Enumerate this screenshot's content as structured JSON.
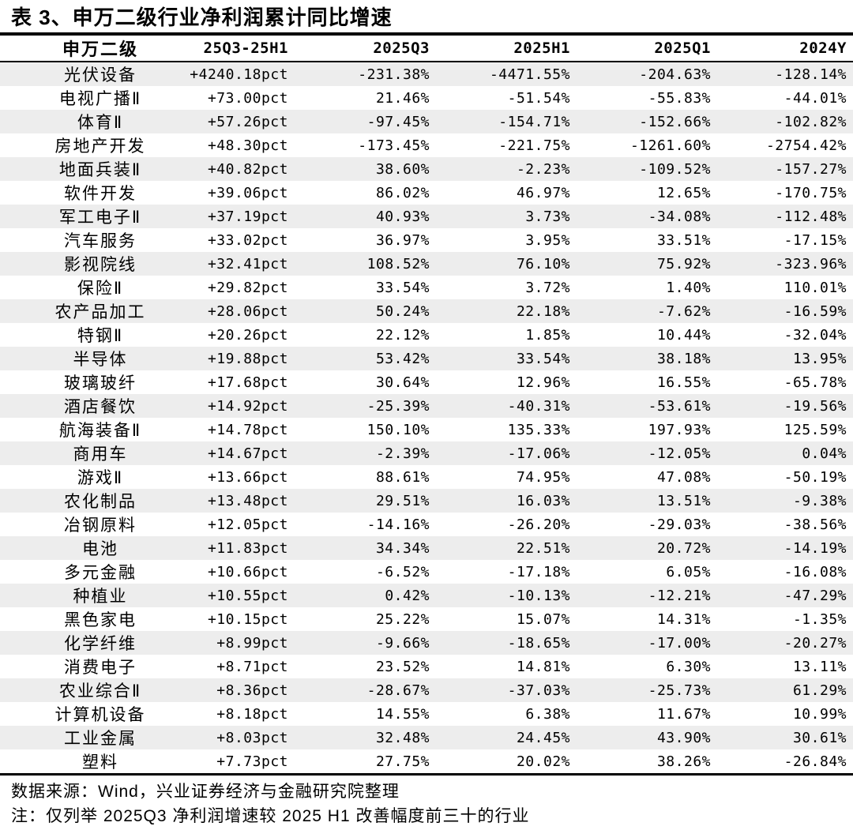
{
  "title": "表 3、申万二级行业净利润累计同比增速",
  "table": {
    "columns": [
      "申万二级",
      "25Q3-25H1",
      "2025Q3",
      "2025H1",
      "2025Q1",
      "2024Y"
    ],
    "rows": [
      [
        "光伏设备",
        "+4240.18pct",
        "-231.38%",
        "-4471.55%",
        "-204.63%",
        "-128.14%"
      ],
      [
        "电视广播Ⅱ",
        "+73.00pct",
        "21.46%",
        "-51.54%",
        "-55.83%",
        "-44.01%"
      ],
      [
        "体育Ⅱ",
        "+57.26pct",
        "-97.45%",
        "-154.71%",
        "-152.66%",
        "-102.82%"
      ],
      [
        "房地产开发",
        "+48.30pct",
        "-173.45%",
        "-221.75%",
        "-1261.60%",
        "-2754.42%"
      ],
      [
        "地面兵装Ⅱ",
        "+40.82pct",
        "38.60%",
        "-2.23%",
        "-109.52%",
        "-157.27%"
      ],
      [
        "软件开发",
        "+39.06pct",
        "86.02%",
        "46.97%",
        "12.65%",
        "-170.75%"
      ],
      [
        "军工电子Ⅱ",
        "+37.19pct",
        "40.93%",
        "3.73%",
        "-34.08%",
        "-112.48%"
      ],
      [
        "汽车服务",
        "+33.02pct",
        "36.97%",
        "3.95%",
        "33.51%",
        "-17.15%"
      ],
      [
        "影视院线",
        "+32.41pct",
        "108.52%",
        "76.10%",
        "75.92%",
        "-323.96%"
      ],
      [
        "保险Ⅱ",
        "+29.82pct",
        "33.54%",
        "3.72%",
        "1.40%",
        "110.01%"
      ],
      [
        "农产品加工",
        "+28.06pct",
        "50.24%",
        "22.18%",
        "-7.62%",
        "-16.59%"
      ],
      [
        "特钢Ⅱ",
        "+20.26pct",
        "22.12%",
        "1.85%",
        "10.44%",
        "-32.04%"
      ],
      [
        "半导体",
        "+19.88pct",
        "53.42%",
        "33.54%",
        "38.18%",
        "13.95%"
      ],
      [
        "玻璃玻纤",
        "+17.68pct",
        "30.64%",
        "12.96%",
        "16.55%",
        "-65.78%"
      ],
      [
        "酒店餐饮",
        "+14.92pct",
        "-25.39%",
        "-40.31%",
        "-53.61%",
        "-19.56%"
      ],
      [
        "航海装备Ⅱ",
        "+14.78pct",
        "150.10%",
        "135.33%",
        "197.93%",
        "125.59%"
      ],
      [
        "商用车",
        "+14.67pct",
        "-2.39%",
        "-17.06%",
        "-12.05%",
        "0.04%"
      ],
      [
        "游戏Ⅱ",
        "+13.66pct",
        "88.61%",
        "74.95%",
        "47.08%",
        "-50.19%"
      ],
      [
        "农化制品",
        "+13.48pct",
        "29.51%",
        "16.03%",
        "13.51%",
        "-9.38%"
      ],
      [
        "冶钢原料",
        "+12.05pct",
        "-14.16%",
        "-26.20%",
        "-29.03%",
        "-38.56%"
      ],
      [
        "电池",
        "+11.83pct",
        "34.34%",
        "22.51%",
        "20.72%",
        "-14.19%"
      ],
      [
        "多元金融",
        "+10.66pct",
        "-6.52%",
        "-17.18%",
        "6.05%",
        "-16.08%"
      ],
      [
        "种植业",
        "+10.55pct",
        "0.42%",
        "-10.13%",
        "-12.21%",
        "-47.29%"
      ],
      [
        "黑色家电",
        "+10.15pct",
        "25.22%",
        "15.07%",
        "14.31%",
        "-1.35%"
      ],
      [
        "化学纤维",
        "+8.99pct",
        "-9.66%",
        "-18.65%",
        "-17.00%",
        "-20.27%"
      ],
      [
        "消费电子",
        "+8.71pct",
        "23.52%",
        "14.81%",
        "6.30%",
        "13.11%"
      ],
      [
        "农业综合Ⅱ",
        "+8.36pct",
        "-28.67%",
        "-37.03%",
        "-25.73%",
        "61.29%"
      ],
      [
        "计算机设备",
        "+8.18pct",
        "14.55%",
        "6.38%",
        "11.67%",
        "10.99%"
      ],
      [
        "工业金属",
        "+8.03pct",
        "32.48%",
        "24.45%",
        "43.90%",
        "30.61%"
      ],
      [
        "塑料",
        "+7.73pct",
        "27.75%",
        "20.02%",
        "38.26%",
        "-26.84%"
      ]
    ]
  },
  "footer": {
    "source": "数据来源：Wind，兴业证券经济与金融研究院整理",
    "note": "注：仅列举 2025Q3 净利润增速较 2025 H1 改善幅度前三十的行业"
  },
  "colors": {
    "stripe": "#ededed",
    "rule": "#000000",
    "text": "#000000",
    "background": "#ffffff"
  }
}
